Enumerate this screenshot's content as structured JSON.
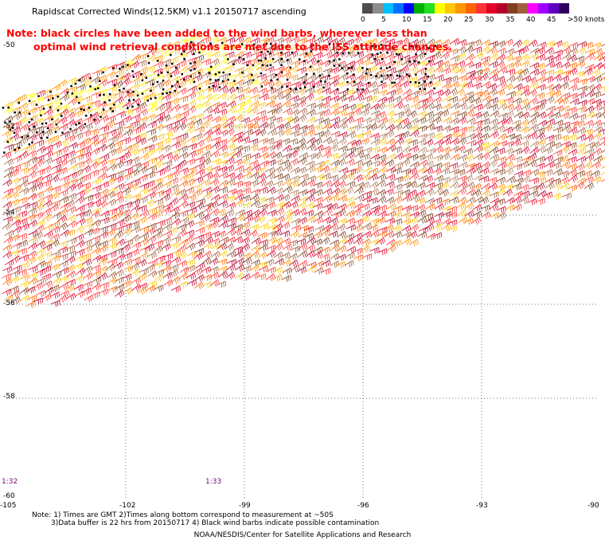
{
  "title": "Rapidscat Corrected Winds(12.5KM) v1.1 20150717 ascending",
  "note": {
    "line1": "Note: black circles have been added to the wind barbs, wherever less than",
    "line2": "optimal wind retrieval conditions are met due to the ISS attitude changes."
  },
  "legend": {
    "unit": "knots",
    "labels": [
      "0",
      "5",
      "10",
      "15",
      "20",
      "25",
      "30",
      "35",
      "40",
      "45",
      ">50 knots"
    ],
    "colors": [
      "#4d4d4d",
      "#8c8c8c",
      "#00bfff",
      "#0070ff",
      "#0000ff",
      "#00b000",
      "#20e020",
      "#ffff00",
      "#ffc800",
      "#ff9600",
      "#ff6400",
      "#ff3232",
      "#e0002a",
      "#b40028",
      "#804020",
      "#a06040",
      "#ff00ff",
      "#a000ff",
      "#6000c0",
      "#300060"
    ]
  },
  "axes": {
    "lat_labels": [
      "-50",
      "-52",
      "-54",
      "-56",
      "-58",
      "-60"
    ],
    "lon_labels": [
      "-105",
      "-102",
      "-99",
      "-96",
      "-93",
      "-90"
    ]
  },
  "time_labels": [
    "1:32",
    "1:33"
  ],
  "footnote": {
    "line1": "Note: 1) Times are GMT 2)Times along bottom correspond to measurement at ~50S",
    "line2": "3)Data buffer is 22 hrs from 20150717 4) Black wind barbs indicate possible contamination"
  },
  "credit": "NOAA/NESDIS/Center for Satellite Applications and Research"
}
